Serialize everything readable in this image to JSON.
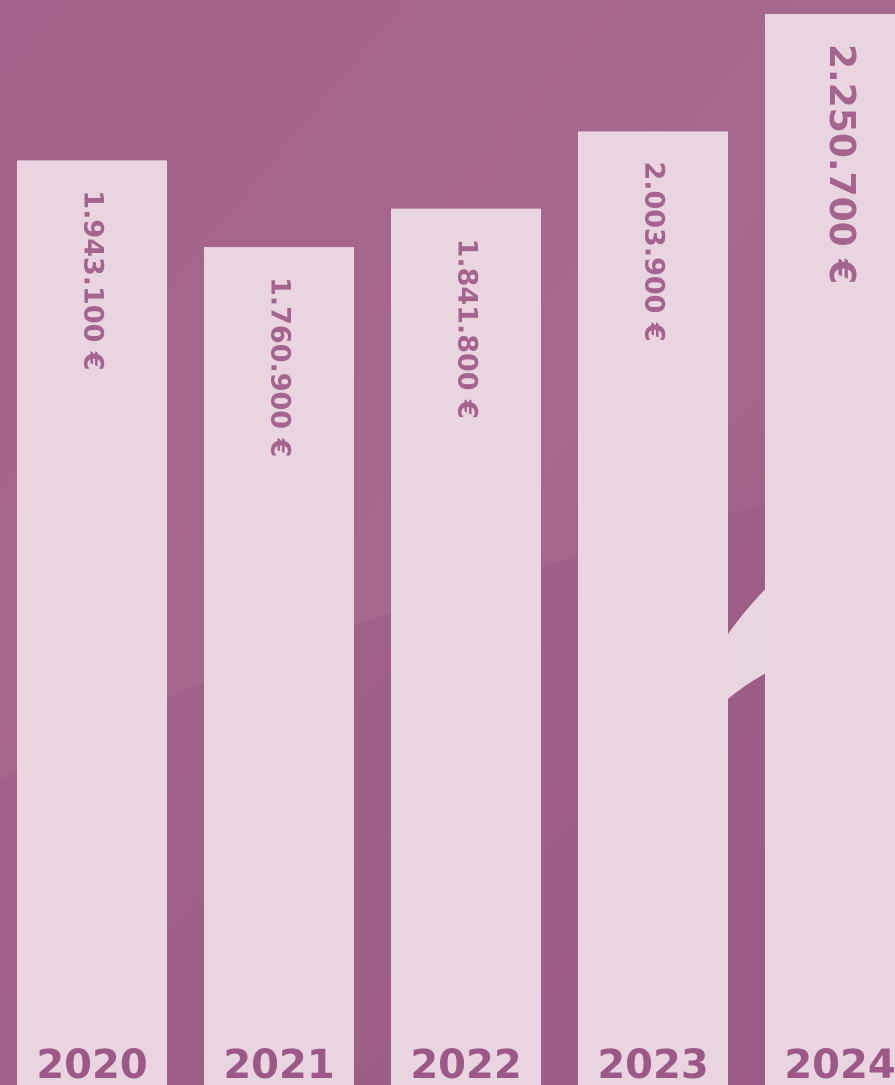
{
  "chart_data": {
    "type": "bar",
    "categories": [
      "2020",
      "2021",
      "2022",
      "2023",
      "2024"
    ],
    "values": [
      1943100,
      1760900,
      1841800,
      2003900,
      2250700
    ],
    "value_labels": [
      "1.943.100 €",
      "1.760.900 €",
      "1.841.800 €",
      "2.003.900 €",
      "2.250.700 €"
    ],
    "color": "#e8d5e0"
  }
}
